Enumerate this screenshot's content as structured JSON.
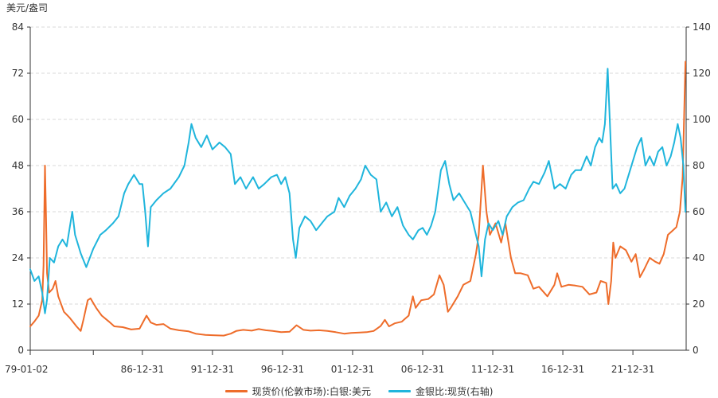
{
  "chart_data": {
    "type": "line",
    "y_unit_label": "美元/盎司",
    "x_tick_labels": [
      "79-01-02",
      "86-12-31",
      "91-12-31",
      "96-12-31",
      "01-12-31",
      "06-12-31",
      "11-12-31",
      "16-12-31",
      "21-12-31"
    ],
    "x_tick_years": [
      1979.0,
      1987.0,
      1992.0,
      1997.0,
      2002.0,
      2007.0,
      2012.0,
      2017.0,
      2022.0
    ],
    "xlim": [
      1979.0,
      2025.8
    ],
    "y_left": {
      "ylim": [
        0,
        84
      ],
      "ticks": [
        "0",
        "12",
        "24",
        "36",
        "48",
        "60",
        "72",
        "84"
      ]
    },
    "y_right": {
      "ylim": [
        0,
        140
      ],
      "ticks": [
        "0",
        "20",
        "40",
        "60",
        "80",
        "100",
        "120",
        "140"
      ]
    },
    "grid": true,
    "legend_position": "bottom",
    "series": [
      {
        "name": "现货价(伦敦市场):白银:美元",
        "axis": "left",
        "color": "#ee6c2a",
        "points": [
          [
            1979.0,
            6.2
          ],
          [
            1979.3,
            7.5
          ],
          [
            1979.6,
            9.0
          ],
          [
            1979.85,
            13.0
          ],
          [
            1979.95,
            22.0
          ],
          [
            1980.05,
            48.0
          ],
          [
            1980.12,
            36.0
          ],
          [
            1980.2,
            20.0
          ],
          [
            1980.35,
            15.0
          ],
          [
            1980.6,
            16.0
          ],
          [
            1980.8,
            18.0
          ],
          [
            1981.0,
            14.0
          ],
          [
            1981.4,
            10.0
          ],
          [
            1981.8,
            8.5
          ],
          [
            1982.3,
            6.2
          ],
          [
            1982.6,
            5.0
          ],
          [
            1982.8,
            8.0
          ],
          [
            1983.1,
            13.0
          ],
          [
            1983.3,
            13.5
          ],
          [
            1983.7,
            11.0
          ],
          [
            1984.1,
            9.0
          ],
          [
            1984.6,
            7.5
          ],
          [
            1985.0,
            6.2
          ],
          [
            1985.6,
            6.0
          ],
          [
            1986.2,
            5.4
          ],
          [
            1986.8,
            5.6
          ],
          [
            1987.3,
            9.0
          ],
          [
            1987.6,
            7.2
          ],
          [
            1988.0,
            6.6
          ],
          [
            1988.5,
            6.8
          ],
          [
            1989.0,
            5.6
          ],
          [
            1989.6,
            5.2
          ],
          [
            1990.3,
            4.9
          ],
          [
            1990.8,
            4.3
          ],
          [
            1991.5,
            4.0
          ],
          [
            1992.0,
            3.9
          ],
          [
            1992.8,
            3.8
          ],
          [
            1993.3,
            4.3
          ],
          [
            1993.7,
            5.0
          ],
          [
            1994.2,
            5.3
          ],
          [
            1994.8,
            5.1
          ],
          [
            1995.3,
            5.5
          ],
          [
            1995.8,
            5.2
          ],
          [
            1996.3,
            5.0
          ],
          [
            1996.9,
            4.7
          ],
          [
            1997.5,
            4.8
          ],
          [
            1998.0,
            6.5
          ],
          [
            1998.5,
            5.3
          ],
          [
            1999.0,
            5.1
          ],
          [
            1999.6,
            5.2
          ],
          [
            2000.2,
            5.0
          ],
          [
            2000.8,
            4.7
          ],
          [
            2001.4,
            4.3
          ],
          [
            2001.9,
            4.5
          ],
          [
            2002.5,
            4.6
          ],
          [
            2003.0,
            4.7
          ],
          [
            2003.5,
            5.0
          ],
          [
            2004.0,
            6.3
          ],
          [
            2004.3,
            7.9
          ],
          [
            2004.6,
            6.2
          ],
          [
            2005.0,
            7.0
          ],
          [
            2005.5,
            7.4
          ],
          [
            2006.0,
            9.0
          ],
          [
            2006.3,
            14.0
          ],
          [
            2006.5,
            11.0
          ],
          [
            2006.9,
            13.0
          ],
          [
            2007.4,
            13.3
          ],
          [
            2007.8,
            14.5
          ],
          [
            2008.2,
            19.5
          ],
          [
            2008.5,
            17.0
          ],
          [
            2008.8,
            10.0
          ],
          [
            2009.0,
            11.0
          ],
          [
            2009.5,
            14.0
          ],
          [
            2009.9,
            17.0
          ],
          [
            2010.4,
            18.0
          ],
          [
            2010.8,
            25.0
          ],
          [
            2011.0,
            30.0
          ],
          [
            2011.3,
            48.0
          ],
          [
            2011.55,
            36.0
          ],
          [
            2011.8,
            30.0
          ],
          [
            2012.2,
            33.0
          ],
          [
            2012.6,
            28.0
          ],
          [
            2012.9,
            33.0
          ],
          [
            2013.3,
            24.0
          ],
          [
            2013.6,
            20.0
          ],
          [
            2014.0,
            20.0
          ],
          [
            2014.5,
            19.5
          ],
          [
            2014.9,
            16.0
          ],
          [
            2015.3,
            16.5
          ],
          [
            2015.9,
            14.0
          ],
          [
            2016.4,
            17.0
          ],
          [
            2016.6,
            20.0
          ],
          [
            2016.9,
            16.5
          ],
          [
            2017.4,
            17.0
          ],
          [
            2017.9,
            16.8
          ],
          [
            2018.4,
            16.5
          ],
          [
            2018.9,
            14.5
          ],
          [
            2019.4,
            15.0
          ],
          [
            2019.7,
            18.0
          ],
          [
            2020.1,
            17.5
          ],
          [
            2020.25,
            12.0
          ],
          [
            2020.45,
            18.0
          ],
          [
            2020.6,
            28.0
          ],
          [
            2020.75,
            24.0
          ],
          [
            2021.1,
            27.0
          ],
          [
            2021.5,
            26.0
          ],
          [
            2021.9,
            23.0
          ],
          [
            2022.2,
            25.0
          ],
          [
            2022.5,
            19.0
          ],
          [
            2022.8,
            21.0
          ],
          [
            2023.2,
            24.0
          ],
          [
            2023.6,
            23.0
          ],
          [
            2023.9,
            22.5
          ],
          [
            2024.2,
            25.0
          ],
          [
            2024.5,
            30.0
          ],
          [
            2024.8,
            31.0
          ],
          [
            2025.1,
            32.0
          ],
          [
            2025.35,
            36.0
          ],
          [
            2025.55,
            45.0
          ],
          [
            2025.75,
            75.0
          ]
        ]
      },
      {
        "name": "金银比:现货(右轴)",
        "axis": "right",
        "color": "#1fb5dc",
        "points": [
          [
            1979.0,
            35.0
          ],
          [
            1979.3,
            30.0
          ],
          [
            1979.6,
            32.0
          ],
          [
            1979.85,
            25.0
          ],
          [
            1980.05,
            16.0
          ],
          [
            1980.2,
            22.0
          ],
          [
            1980.4,
            40.0
          ],
          [
            1980.7,
            38.0
          ],
          [
            1981.0,
            45.0
          ],
          [
            1981.3,
            48.0
          ],
          [
            1981.6,
            45.0
          ],
          [
            1982.0,
            60.0
          ],
          [
            1982.2,
            50.0
          ],
          [
            1982.6,
            42.0
          ],
          [
            1983.0,
            36.0
          ],
          [
            1983.5,
            44.0
          ],
          [
            1984.0,
            50.0
          ],
          [
            1984.4,
            52.0
          ],
          [
            1984.9,
            55.0
          ],
          [
            1985.3,
            58.0
          ],
          [
            1985.7,
            68.0
          ],
          [
            1986.0,
            72.0
          ],
          [
            1986.4,
            76.0
          ],
          [
            1986.8,
            72.0
          ],
          [
            1987.0,
            72.0
          ],
          [
            1987.2,
            60.0
          ],
          [
            1987.4,
            45.0
          ],
          [
            1987.6,
            62.0
          ],
          [
            1988.0,
            65.0
          ],
          [
            1988.5,
            68.0
          ],
          [
            1989.0,
            70.0
          ],
          [
            1989.6,
            75.0
          ],
          [
            1990.0,
            80.0
          ],
          [
            1990.3,
            90.0
          ],
          [
            1990.5,
            98.0
          ],
          [
            1990.8,
            92.0
          ],
          [
            1991.2,
            88.0
          ],
          [
            1991.6,
            93.0
          ],
          [
            1992.0,
            87.0
          ],
          [
            1992.5,
            90.0
          ],
          [
            1992.9,
            88.0
          ],
          [
            1993.3,
            85.0
          ],
          [
            1993.6,
            72.0
          ],
          [
            1994.0,
            75.0
          ],
          [
            1994.4,
            70.0
          ],
          [
            1994.9,
            75.0
          ],
          [
            1995.3,
            70.0
          ],
          [
            1995.7,
            72.0
          ],
          [
            1996.2,
            75.0
          ],
          [
            1996.6,
            76.0
          ],
          [
            1996.9,
            72.0
          ],
          [
            1997.2,
            75.0
          ],
          [
            1997.5,
            68.0
          ],
          [
            1997.75,
            48.0
          ],
          [
            1997.95,
            40.0
          ],
          [
            1998.2,
            53.0
          ],
          [
            1998.6,
            58.0
          ],
          [
            1999.0,
            56.0
          ],
          [
            1999.4,
            52.0
          ],
          [
            1999.8,
            55.0
          ],
          [
            2000.2,
            58.0
          ],
          [
            2000.7,
            60.0
          ],
          [
            2001.0,
            66.0
          ],
          [
            2001.4,
            62.0
          ],
          [
            2001.8,
            67.0
          ],
          [
            2002.2,
            70.0
          ],
          [
            2002.6,
            74.0
          ],
          [
            2002.9,
            80.0
          ],
          [
            2003.3,
            76.0
          ],
          [
            2003.7,
            74.0
          ],
          [
            2004.0,
            60.0
          ],
          [
            2004.4,
            64.0
          ],
          [
            2004.8,
            58.0
          ],
          [
            2005.2,
            62.0
          ],
          [
            2005.6,
            54.0
          ],
          [
            2006.0,
            50.0
          ],
          [
            2006.3,
            48.0
          ],
          [
            2006.7,
            52.0
          ],
          [
            2007.0,
            53.0
          ],
          [
            2007.3,
            50.0
          ],
          [
            2007.6,
            54.0
          ],
          [
            2007.9,
            60.0
          ],
          [
            2008.3,
            78.0
          ],
          [
            2008.6,
            82.0
          ],
          [
            2008.9,
            72.0
          ],
          [
            2009.2,
            65.0
          ],
          [
            2009.6,
            68.0
          ],
          [
            2010.0,
            64.0
          ],
          [
            2010.4,
            60.0
          ],
          [
            2010.8,
            50.0
          ],
          [
            2011.0,
            45.0
          ],
          [
            2011.2,
            32.0
          ],
          [
            2011.45,
            48.0
          ],
          [
            2011.7,
            55.0
          ],
          [
            2012.0,
            52.0
          ],
          [
            2012.4,
            56.0
          ],
          [
            2012.7,
            50.0
          ],
          [
            2013.0,
            58.0
          ],
          [
            2013.4,
            62.0
          ],
          [
            2013.8,
            64.0
          ],
          [
            2014.2,
            65.0
          ],
          [
            2014.6,
            70.0
          ],
          [
            2014.9,
            73.0
          ],
          [
            2015.3,
            72.0
          ],
          [
            2015.7,
            77.0
          ],
          [
            2016.0,
            82.0
          ],
          [
            2016.4,
            70.0
          ],
          [
            2016.8,
            72.0
          ],
          [
            2017.2,
            70.0
          ],
          [
            2017.6,
            76.0
          ],
          [
            2017.9,
            78.0
          ],
          [
            2018.3,
            78.0
          ],
          [
            2018.7,
            84.0
          ],
          [
            2019.0,
            80.0
          ],
          [
            2019.3,
            88.0
          ],
          [
            2019.6,
            92.0
          ],
          [
            2019.8,
            90.0
          ],
          [
            2020.0,
            98.0
          ],
          [
            2020.2,
            122.0
          ],
          [
            2020.35,
            100.0
          ],
          [
            2020.55,
            70.0
          ],
          [
            2020.8,
            72.0
          ],
          [
            2021.1,
            68.0
          ],
          [
            2021.4,
            70.0
          ],
          [
            2021.7,
            76.0
          ],
          [
            2022.0,
            82.0
          ],
          [
            2022.3,
            88.0
          ],
          [
            2022.6,
            92.0
          ],
          [
            2022.9,
            80.0
          ],
          [
            2023.2,
            84.0
          ],
          [
            2023.5,
            80.0
          ],
          [
            2023.8,
            86.0
          ],
          [
            2024.1,
            88.0
          ],
          [
            2024.4,
            80.0
          ],
          [
            2024.7,
            84.0
          ],
          [
            2024.95,
            90.0
          ],
          [
            2025.2,
            98.0
          ],
          [
            2025.4,
            92.0
          ],
          [
            2025.6,
            80.0
          ],
          [
            2025.75,
            60.0
          ]
        ]
      }
    ]
  }
}
